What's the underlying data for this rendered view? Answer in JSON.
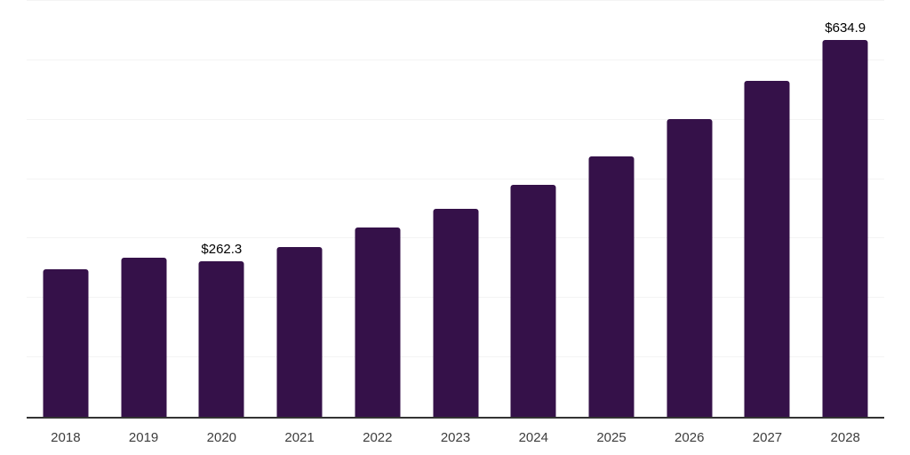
{
  "chart_data": {
    "type": "bar",
    "title": "",
    "xlabel": "",
    "ylabel": "",
    "categories": [
      "2018",
      "2019",
      "2020",
      "2021",
      "2022",
      "2023",
      "2024",
      "2025",
      "2026",
      "2027",
      "2028"
    ],
    "values": [
      248.0,
      268.0,
      262.3,
      285.5,
      319.0,
      350.0,
      391.0,
      438.5,
      501.0,
      566.0,
      634.9
    ],
    "value_labels": [
      "",
      "",
      "$262.3",
      "",
      "",
      "",
      "",
      "",
      "",
      "",
      "$634.9"
    ],
    "ylim": [
      0,
      700
    ],
    "gridline_step": 100,
    "grid": true,
    "legend": false,
    "bar_color": "#351149",
    "grid_color": "#f4f4f4",
    "axis_line_color": "#333333",
    "tick_label_color": "#3d3d3d",
    "value_label_color": "#000000",
    "background_color": "#ffffff"
  }
}
